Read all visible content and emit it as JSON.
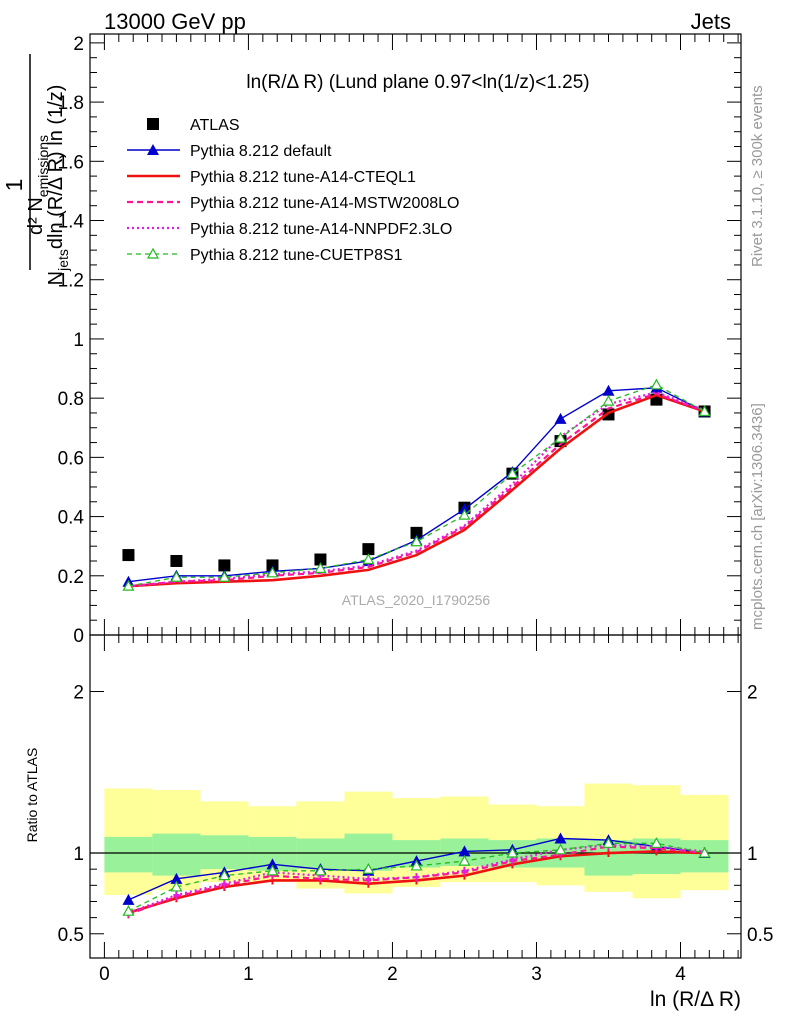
{
  "header": {
    "left": "13000 GeV pp",
    "right": "Jets",
    "plot_title": "ln(R/Δ R) (Lund plane 0.97<ln(1/z)<1.25)",
    "analysis_id": "ATLAS_2020_I1790256",
    "side_rivet": "Rivet 3.1.10, ≥ 300k events",
    "side_mcplots": "mcplots.cern.ch [arXiv:1306.3436]"
  },
  "axes": {
    "main_ylabel": "1/N_jets d²N_emissions / dln(R/ΔR) ln(1/z)",
    "ratio_ylabel": "Ratio to ATLAS",
    "xlabel": "ln (R/Δ R)"
  },
  "colors": {
    "atlas": "#000000",
    "default": "#0000cc",
    "cteql1": "#ee1111",
    "mstw": "#ff1493",
    "nnpdf": "#e020e0",
    "cuetp": "#22bb22",
    "band_inner": "#99f299",
    "band_outer": "#ffff99"
  },
  "chart_data": [
    {
      "type": "scatter+line",
      "title": "ln(R/Δ R) (Lund plane 0.97<ln(1/z)<1.25)",
      "xlabel": "ln (R/Δ R)",
      "ylabel": "1/N_jets d²N_emissions / dln(R/ΔR) ln(1/z)",
      "xlim": [
        -0.1,
        4.42
      ],
      "ylim": [
        0,
        2.03
      ],
      "x": [
        0.167,
        0.5,
        0.833,
        1.167,
        1.5,
        1.833,
        2.167,
        2.5,
        2.833,
        3.167,
        3.5,
        3.833,
        4.167
      ],
      "series": [
        {
          "name": "ATLAS",
          "key": "atlas",
          "style": "square",
          "values": [
            0.27,
            0.25,
            0.235,
            0.235,
            0.255,
            0.29,
            0.345,
            0.43,
            0.545,
            0.655,
            0.745,
            0.795,
            0.755
          ]
        },
        {
          "name": "Pythia 8.212 default",
          "key": "default",
          "style": "solid-triangle",
          "values": [
            0.18,
            0.2,
            0.2,
            0.215,
            0.225,
            0.25,
            0.32,
            0.425,
            0.55,
            0.73,
            0.825,
            0.835,
            0.755
          ]
        },
        {
          "name": "Pythia 8.212 tune-A14-CTEQL1",
          "key": "cteql1",
          "style": "thick-solid",
          "values": [
            0.165,
            0.175,
            0.18,
            0.185,
            0.2,
            0.22,
            0.27,
            0.355,
            0.49,
            0.63,
            0.75,
            0.81,
            0.755
          ]
        },
        {
          "name": "Pythia 8.212 tune-A14-MSTW2008LO",
          "key": "mstw",
          "style": "dashed",
          "values": [
            0.165,
            0.18,
            0.185,
            0.2,
            0.21,
            0.23,
            0.28,
            0.365,
            0.5,
            0.645,
            0.765,
            0.815,
            0.755
          ]
        },
        {
          "name": "Pythia 8.212 tune-A14-NNPDF2.3LO",
          "key": "nnpdf",
          "style": "dotted",
          "values": [
            0.165,
            0.18,
            0.19,
            0.205,
            0.215,
            0.235,
            0.285,
            0.37,
            0.51,
            0.67,
            0.78,
            0.82,
            0.76
          ]
        },
        {
          "name": "Pythia 8.212 tune-CUETP8S1",
          "key": "cuetp",
          "style": "dashed-open-triangle",
          "values": [
            0.165,
            0.195,
            0.195,
            0.21,
            0.225,
            0.255,
            0.315,
            0.405,
            0.545,
            0.665,
            0.79,
            0.845,
            0.755
          ]
        }
      ],
      "yticks": [
        0,
        0.2,
        0.4,
        0.6,
        0.8,
        1,
        1.2,
        1.4,
        1.6,
        1.8,
        2
      ],
      "legend": "top-left"
    },
    {
      "type": "ratio",
      "ylabel": "Ratio to ATLAS",
      "xlabel": "ln (R/Δ R)",
      "ylim": [
        0.35,
        2.35
      ],
      "bin_edges": [
        0,
        0.333,
        0.667,
        1,
        1.333,
        1.667,
        2,
        2.333,
        2.667,
        3,
        3.333,
        3.667,
        4,
        4.333
      ],
      "band_inner": [
        [
          0.88,
          1.1
        ],
        [
          0.86,
          1.12
        ],
        [
          0.9,
          1.11
        ],
        [
          0.89,
          1.1
        ],
        [
          0.9,
          1.09
        ],
        [
          0.89,
          1.12
        ],
        [
          0.91,
          1.08
        ],
        [
          0.92,
          1.09
        ],
        [
          0.91,
          1.08
        ],
        [
          0.91,
          1.09
        ],
        [
          0.86,
          1.08
        ],
        [
          0.87,
          1.09
        ],
        [
          0.88,
          1.08
        ]
      ],
      "band_outer": [
        [
          0.74,
          1.4
        ],
        [
          0.77,
          1.39
        ],
        [
          0.82,
          1.32
        ],
        [
          0.82,
          1.29
        ],
        [
          0.78,
          1.32
        ],
        [
          0.75,
          1.38
        ],
        [
          0.79,
          1.34
        ],
        [
          0.82,
          1.35
        ],
        [
          0.82,
          1.3
        ],
        [
          0.8,
          1.29
        ],
        [
          0.76,
          1.43
        ],
        [
          0.72,
          1.42
        ],
        [
          0.77,
          1.36
        ]
      ],
      "series": [
        {
          "name": "Pythia 8.212 default",
          "key": "default",
          "style": "solid-triangle",
          "values": [
            0.71,
            0.84,
            0.88,
            0.93,
            0.9,
            0.89,
            0.95,
            1.01,
            1.02,
            1.09,
            1.08,
            1.04,
            1.0
          ]
        },
        {
          "name": "Pythia 8.212 tune-A14-CTEQL1",
          "key": "cteql1",
          "style": "thick-solid",
          "values": [
            0.63,
            0.72,
            0.79,
            0.83,
            0.83,
            0.81,
            0.83,
            0.86,
            0.93,
            0.98,
            1.0,
            1.01,
            1.0
          ]
        },
        {
          "name": "Pythia 8.212 tune-A14-MSTW2008LO",
          "key": "mstw",
          "style": "dashed",
          "values": [
            0.62,
            0.73,
            0.8,
            0.86,
            0.84,
            0.83,
            0.85,
            0.88,
            0.95,
            0.99,
            1.04,
            1.03,
            1.0
          ]
        },
        {
          "name": "Pythia 8.212 tune-A14-NNPDF2.3LO",
          "key": "nnpdf",
          "style": "dotted",
          "values": [
            0.63,
            0.74,
            0.81,
            0.88,
            0.86,
            0.84,
            0.85,
            0.89,
            0.96,
            1.02,
            1.05,
            1.04,
            1.01
          ]
        },
        {
          "name": "Pythia 8.212 tune-CUETP8S1",
          "key": "cuetp",
          "style": "dashed-open-triangle",
          "values": [
            0.64,
            0.79,
            0.86,
            0.89,
            0.89,
            0.9,
            0.92,
            0.95,
            1.0,
            1.02,
            1.06,
            1.06,
            1.0
          ]
        }
      ],
      "yticks": [
        0.5,
        1,
        2
      ]
    }
  ]
}
